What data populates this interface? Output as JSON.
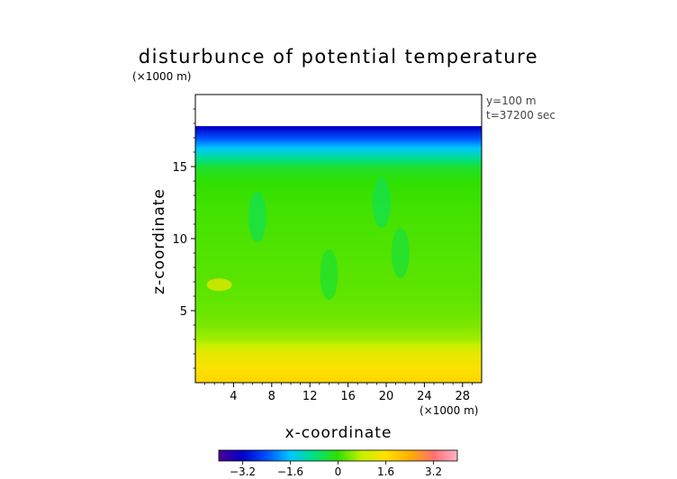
{
  "chart_data": {
    "type": "heatmap",
    "title": "disturbunce of potential temperature",
    "xlabel": "x-coordinate",
    "ylabel": "z-coordinate",
    "x_unit": "(×1000 m)",
    "y_unit": "(×1000 m)",
    "annotations": [
      "y=100 m",
      "t=37200 sec"
    ],
    "xlim": [
      0,
      30
    ],
    "ylim": [
      0,
      20
    ],
    "x_ticks": [
      4,
      8,
      12,
      16,
      20,
      24,
      28
    ],
    "y_ticks": [
      5,
      10,
      15
    ],
    "colorbar": {
      "ticks": [
        -3.2,
        -1.6,
        0,
        1.6,
        3.2
      ],
      "tick_labels": [
        "−3.2",
        "−1.6",
        "0",
        "1.6",
        "3.2"
      ],
      "range": [
        -4.0,
        4.0
      ],
      "colors": [
        "#4a0096",
        "#0000c8",
        "#0050ff",
        "#00c8ff",
        "#00e080",
        "#30e000",
        "#c8f000",
        "#ffe000",
        "#ffb000",
        "#ff7070",
        "#ffb4c8"
      ]
    },
    "field_profile": {
      "z": [
        0,
        1,
        2,
        2.5,
        3,
        4,
        5,
        6,
        8,
        10,
        12,
        14,
        15,
        15.5,
        16,
        16.5,
        17,
        17.5,
        17.8
      ],
      "value": [
        1.8,
        1.55,
        1.25,
        0.9,
        0.6,
        0.4,
        0.3,
        0.25,
        0.2,
        0.15,
        0.1,
        0.0,
        -0.3,
        -0.8,
        -1.3,
        -1.8,
        -2.4,
        -2.9,
        -3.3
      ],
      "top_of_data": 17.8
    },
    "local_features": [
      {
        "x": 2.5,
        "z": 6.8,
        "value": 1.3
      },
      {
        "x": 6.5,
        "z": 11.5,
        "value": -0.5
      },
      {
        "x": 19.5,
        "z": 12.5,
        "value": -0.5
      },
      {
        "x": 21.5,
        "z": 9.0,
        "value": -0.35
      },
      {
        "x": 14.0,
        "z": 7.5,
        "value": -0.3
      }
    ]
  }
}
